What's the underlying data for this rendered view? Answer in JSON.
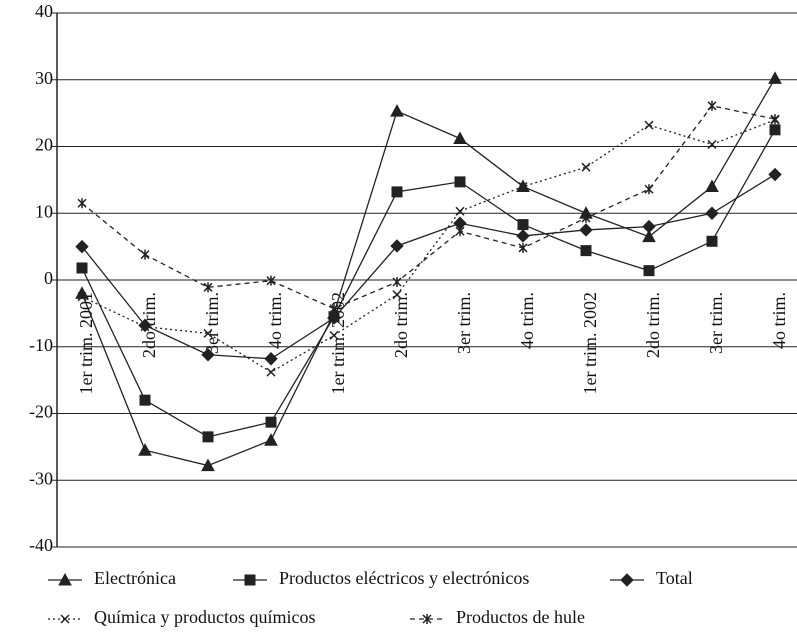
{
  "chart_data": {
    "type": "line",
    "categories": [
      "1er trim. 2001",
      "2do trim.",
      "3er trim.",
      "4o trim.",
      "1er trim. 2002",
      "2do trim.",
      "3er trim.",
      "4o trim.",
      "1er trim. 2002",
      "2do trim.",
      "3er trim.",
      "4o trim."
    ],
    "series": [
      {
        "name": "Electrónica",
        "color": "#222222",
        "marker": "triangle",
        "dash": "solid",
        "values": [
          -2,
          -25.5,
          -27.8,
          -24,
          -5,
          25.3,
          21.2,
          14,
          10,
          6.5,
          14,
          30.2
        ]
      },
      {
        "name": "Productos eléctricos y electrónicos",
        "color": "#222222",
        "marker": "square",
        "dash": "solid",
        "values": [
          1.8,
          -18,
          -23.5,
          -21.3,
          -5.5,
          13.2,
          14.7,
          8.3,
          4.4,
          1.4,
          5.8,
          22.5
        ]
      },
      {
        "name": "Total",
        "color": "#222222",
        "marker": "diamond",
        "dash": "solid",
        "values": [
          5,
          -6.8,
          -11.2,
          -11.8,
          -5.7,
          5.1,
          8.5,
          6.6,
          7.5,
          8,
          10,
          15.8
        ]
      },
      {
        "name": "Química y productos químicos",
        "color": "#222222",
        "marker": "x",
        "dash": "dotted",
        "values": [
          -2.5,
          -7,
          -8,
          -13.8,
          -8.3,
          -2.2,
          10.3,
          14,
          16.9,
          23.2,
          20.3,
          24
        ]
      },
      {
        "name": "Productos de hule",
        "color": "#222222",
        "marker": "star",
        "dash": "dashed",
        "values": [
          11.5,
          3.8,
          -1.1,
          -0.1,
          -4.3,
          -0.3,
          7.3,
          4.8,
          9.3,
          13.6,
          26.1,
          24.1
        ]
      }
    ],
    "ylim": [
      -40,
      40
    ],
    "yticks": [
      -40,
      -30,
      -20,
      -10,
      0,
      10,
      20,
      30,
      40
    ],
    "grid": true
  }
}
